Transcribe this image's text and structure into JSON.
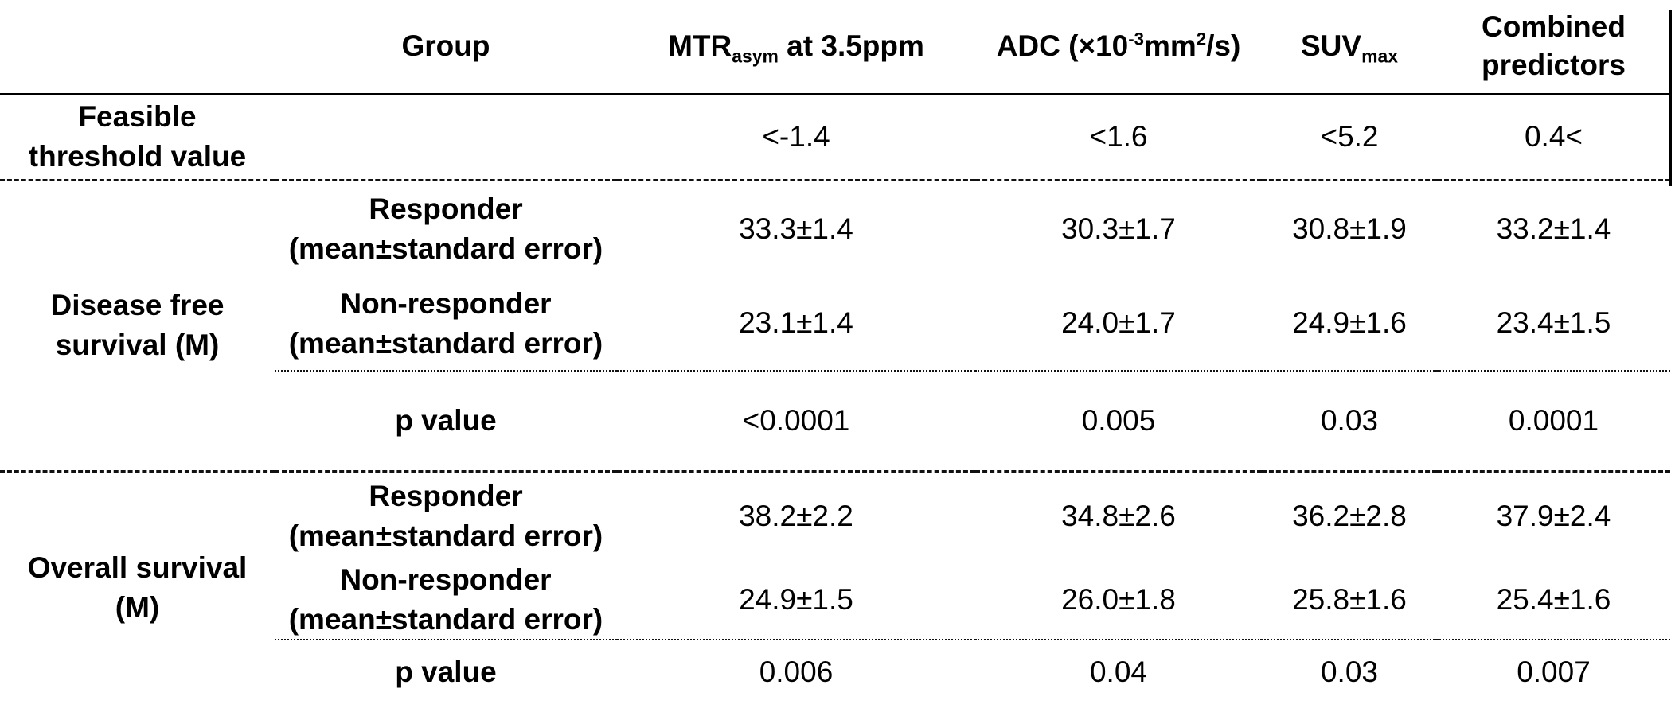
{
  "table": {
    "columns": {
      "group": "Group",
      "mtr": {
        "base": "MTR",
        "sub": "asym",
        "rest": " at 3.5ppm"
      },
      "adc": {
        "p1": "ADC (×10",
        "sup1": "-3",
        "p2": "mm",
        "sup2": "2",
        "p3": "/s)"
      },
      "suv": {
        "base": "SUV",
        "sub": "max"
      },
      "combined": "Combined predictors"
    },
    "threshold_row": {
      "label_line1": "Feasible",
      "label_line2": "threshold value",
      "mtr": "<-1.4",
      "adc": "<1.6",
      "suv": "<5.2",
      "combined": "0.4<"
    },
    "dfs": {
      "label_line1": "Disease free",
      "label_line2": "survival (M)",
      "responder": {
        "group_line1": "Responder",
        "group_line2": "(mean±standard error)",
        "mtr": "33.3±1.4",
        "adc": "30.3±1.7",
        "suv": "30.8±1.9",
        "combined": "33.2±1.4"
      },
      "nonresponder": {
        "group_line1": "Non-responder",
        "group_line2": "(mean±standard error)",
        "mtr": "23.1±1.4",
        "adc": "24.0±1.7",
        "suv": "24.9±1.6",
        "combined": "23.4±1.5"
      },
      "pvalue": {
        "label": "p value",
        "mtr": "<0.0001",
        "adc": "0.005",
        "suv": "0.03",
        "combined": "0.0001"
      }
    },
    "os": {
      "label_line1": "Overall survival",
      "label_line2": "(M)",
      "responder": {
        "group_line1": "Responder",
        "group_line2": "(mean±standard error)",
        "mtr": "38.2±2.2",
        "adc": "34.8±2.6",
        "suv": "36.2±2.8",
        "combined": "37.9±2.4"
      },
      "nonresponder": {
        "group_line1": "Non-responder",
        "group_line2": "(mean±standard error)",
        "mtr": "24.9±1.5",
        "adc": "26.0±1.8",
        "suv": "25.8±1.6",
        "combined": "25.4±1.6"
      },
      "pvalue": {
        "label": "p value",
        "mtr": "0.006",
        "adc": "0.04",
        "suv": "0.03",
        "combined": "0.007"
      }
    }
  }
}
